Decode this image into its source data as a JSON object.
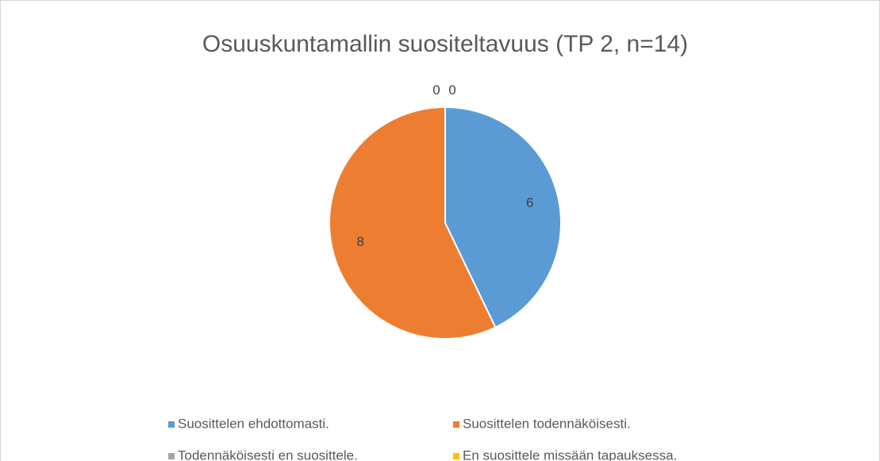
{
  "chart_data": {
    "type": "pie",
    "title": "Osuuskuntamallin suositeltavuus (TP 2, n=14)",
    "categories": [
      "Suosittelen ehdottomasti.",
      "Suosittelen todennäköisesti.",
      "Todennäköisesti en suosittele.",
      "En suosittele missään tapauksessa."
    ],
    "values": [
      6,
      8,
      0,
      0
    ],
    "colors": [
      "#5b9bd5",
      "#ed7d31",
      "#a5a5a5",
      "#ffc000"
    ],
    "legend": "bottom"
  }
}
